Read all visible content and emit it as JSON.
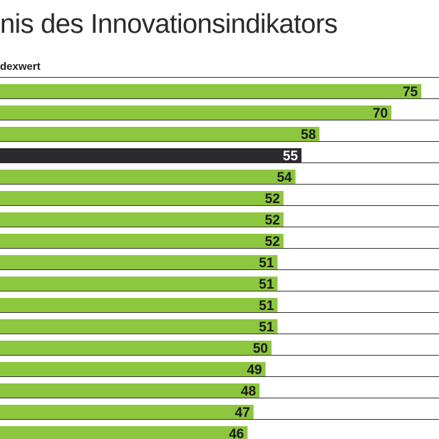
{
  "title": "nis des Innovationsindikators",
  "subtitle": "dexwert",
  "colors": {
    "bar": "#8dc63f",
    "highlight": "#2b2b2e",
    "divider": "#333333",
    "label": "#1a1a1a",
    "highlight_label": "#ffffff"
  },
  "chart_data": {
    "type": "bar",
    "orientation": "horizontal",
    "title": "nis des Innovationsindikators",
    "ylabel": "dexwert",
    "categories": [],
    "values": [
      75,
      70,
      58,
      55,
      54,
      52,
      52,
      52,
      51,
      51,
      51,
      51,
      50,
      49,
      48,
      47,
      46
    ],
    "labels": [
      "75",
      "70",
      "58",
      "55",
      "54",
      "52",
      "52",
      "52",
      "51",
      "51",
      "51",
      "51",
      "50",
      "49",
      "48",
      "47",
      "46"
    ],
    "highlight_index": 3,
    "grid": false
  }
}
